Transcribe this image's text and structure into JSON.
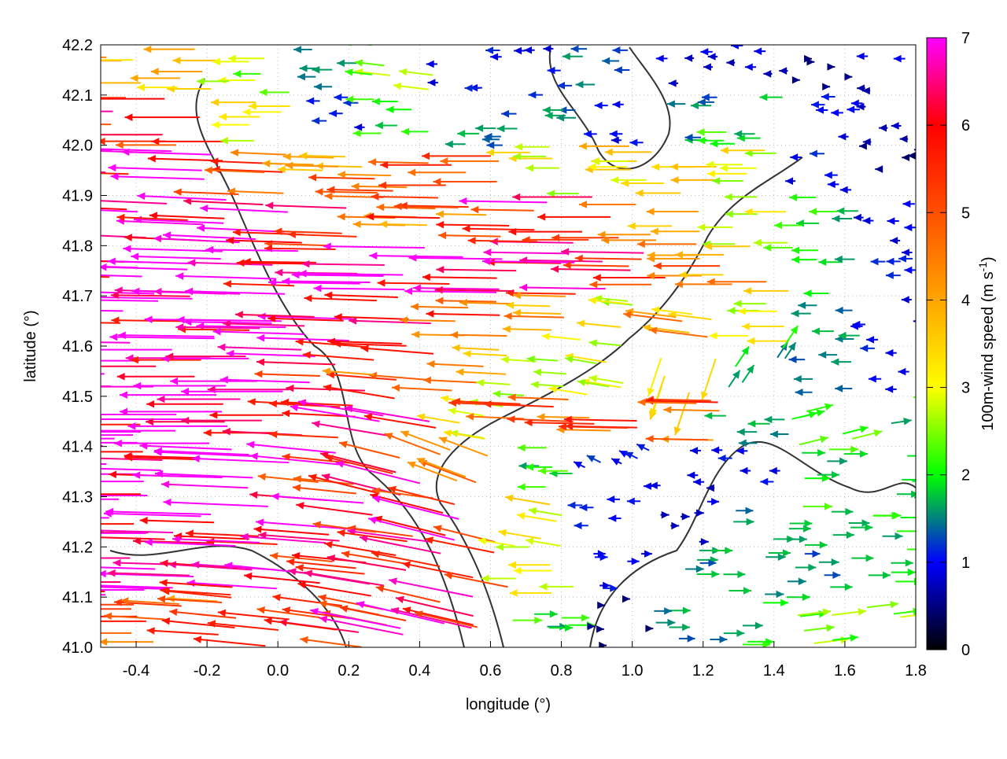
{
  "chart_data": {
    "type": "vector-field",
    "xlabel": "longitude (°)",
    "ylabel": "latitude (°)",
    "colorbar_label": "100m-wind speed (m s-1)",
    "colorbar_label_parts": {
      "main": "100m-wind speed (m s",
      "sup": "-1",
      "end": ")"
    },
    "xlim": [
      -0.5,
      1.8
    ],
    "ylim": [
      41.0,
      42.2
    ],
    "xticks": [
      "-0.4",
      "-0.2",
      "0.0",
      "0.2",
      "0.4",
      "0.6",
      "0.8",
      "1.0",
      "1.2",
      "1.4",
      "1.6",
      "1.8"
    ],
    "yticks": [
      "41.0",
      "41.1",
      "41.2",
      "41.3",
      "41.4",
      "41.5",
      "41.6",
      "41.7",
      "41.8",
      "41.9",
      "42.0",
      "42.1",
      "42.2"
    ],
    "colorbar_range": [
      0,
      7
    ],
    "colorbar_ticks": [
      "0",
      "1",
      "2",
      "3",
      "4",
      "5",
      "6",
      "7"
    ],
    "palette": [
      {
        "v": 0,
        "c": "#000000"
      },
      {
        "v": 1,
        "c": "#0000ff"
      },
      {
        "v": 1.5,
        "c": "#008080"
      },
      {
        "v": 2,
        "c": "#00ff00"
      },
      {
        "v": 3,
        "c": "#ffff00"
      },
      {
        "v": 4,
        "c": "#ffa500"
      },
      {
        "v": 5,
        "c": "#ff5000"
      },
      {
        "v": 6,
        "c": "#ff0000"
      },
      {
        "v": 7,
        "c": "#ff00ff"
      }
    ],
    "grid": true,
    "contour_color": "#333333",
    "vector_lon": [
      -0.45,
      -0.25,
      -0.05,
      0.15,
      0.35,
      0.55,
      0.75,
      0.95,
      1.15,
      1.35,
      1.55,
      1.75
    ],
    "vector_lat": [
      42.15,
      42.05,
      41.95,
      41.85,
      41.75,
      41.65,
      41.55,
      41.45,
      41.35,
      41.25,
      41.15,
      41.05
    ],
    "vectors_uv": [
      [
        [
          -4,
          0
        ],
        [
          -3.5,
          0
        ],
        [
          -2.5,
          0
        ],
        [
          -1.5,
          0
        ],
        [
          -2.5,
          0.3
        ],
        [
          -1,
          0
        ],
        [
          -1,
          0
        ],
        [
          -1.5,
          0
        ],
        [
          -0.8,
          0
        ],
        [
          -0.8,
          0
        ],
        [
          0.5,
          0
        ],
        [
          -0.8,
          0
        ]
      ],
      [
        [
          -6,
          0
        ],
        [
          -6,
          0
        ],
        [
          -3,
          0
        ],
        [
          -1,
          0
        ],
        [
          -2,
          0
        ],
        [
          -1.5,
          0
        ],
        [
          -1.5,
          0
        ],
        [
          -1,
          0
        ],
        [
          -1.5,
          0
        ],
        [
          -2,
          0
        ],
        [
          -1,
          0
        ],
        [
          -0.8,
          0
        ]
      ],
      [
        [
          -7,
          0.2
        ],
        [
          -6.5,
          0.2
        ],
        [
          -5,
          0.2
        ],
        [
          -4,
          0.1
        ],
        [
          -5,
          0.1
        ],
        [
          -5.5,
          0
        ],
        [
          -3,
          0
        ],
        [
          -3.5,
          0
        ],
        [
          -3.5,
          0
        ],
        [
          -3,
          0
        ],
        [
          -1,
          0
        ],
        [
          -0.5,
          0
        ]
      ],
      [
        [
          -7,
          0.3
        ],
        [
          -7,
          0.3
        ],
        [
          -6.5,
          0.3
        ],
        [
          -6,
          0.2
        ],
        [
          -4,
          0.1
        ],
        [
          -5,
          0.1
        ],
        [
          -6,
          0.1
        ],
        [
          -5.5,
          0
        ],
        [
          -4,
          0
        ],
        [
          -3,
          0
        ],
        [
          -2,
          0
        ],
        [
          -1,
          0
        ]
      ],
      [
        [
          -7,
          0.2
        ],
        [
          -7,
          0.2
        ],
        [
          -7,
          0.2
        ],
        [
          -7,
          0.1
        ],
        [
          -7,
          0.1
        ],
        [
          -7,
          0.1
        ],
        [
          -6.5,
          0.1
        ],
        [
          -6,
          0.1
        ],
        [
          -5,
          0
        ],
        [
          -4,
          0
        ],
        [
          -2,
          0
        ],
        [
          -1,
          0
        ]
      ],
      [
        [
          -7,
          0.1
        ],
        [
          -7,
          0.1
        ],
        [
          -7,
          0.1
        ],
        [
          -6.5,
          0.2
        ],
        [
          -6,
          0.2
        ],
        [
          -5,
          0.1
        ],
        [
          -4,
          0.1
        ],
        [
          -3,
          0.3
        ],
        [
          -4,
          0.5
        ],
        [
          -3,
          0
        ],
        [
          -1.5,
          0
        ],
        [
          -1,
          0
        ]
      ],
      [
        [
          -7,
          0
        ],
        [
          -7,
          0
        ],
        [
          -7,
          0
        ],
        [
          -6,
          0.2
        ],
        [
          -5,
          0.4
        ],
        [
          -4,
          0.2
        ],
        [
          -3,
          0.2
        ],
        [
          -3,
          0.5
        ],
        [
          -1,
          -3
        ],
        [
          1,
          1.5
        ],
        [
          -1.5,
          0
        ],
        [
          -1,
          0
        ]
      ],
      [
        [
          -7,
          0
        ],
        [
          -7,
          0
        ],
        [
          -7,
          0
        ],
        [
          -6,
          0.3
        ],
        [
          -6,
          1
        ],
        [
          -3,
          0.5
        ],
        [
          -5,
          0.2
        ],
        [
          -5,
          0.1
        ],
        [
          -5,
          0.1
        ],
        [
          -1.5,
          0
        ],
        [
          2,
          0.5
        ],
        [
          2,
          0.3
        ]
      ],
      [
        [
          -7,
          0
        ],
        [
          -7,
          0.2
        ],
        [
          -7,
          0.3
        ],
        [
          -6,
          0.6
        ],
        [
          -6,
          1.5
        ],
        [
          -4,
          1.5
        ],
        [
          -2,
          0
        ],
        [
          -1,
          0.5
        ],
        [
          -0.8,
          0
        ],
        [
          -1,
          0
        ],
        [
          2,
          0
        ],
        [
          2,
          0
        ]
      ],
      [
        [
          -7,
          0
        ],
        [
          -7,
          0.2
        ],
        [
          -7,
          0.3
        ],
        [
          -6.5,
          0.5
        ],
        [
          -6,
          0.8
        ],
        [
          -6,
          1.5
        ],
        [
          -3,
          0.5
        ],
        [
          -1,
          0
        ],
        [
          0.8,
          0
        ],
        [
          1.5,
          0
        ],
        [
          2,
          0
        ],
        [
          2,
          0
        ]
      ],
      [
        [
          -7,
          0
        ],
        [
          -6.5,
          0.2
        ],
        [
          -6,
          0.4
        ],
        [
          -6,
          0.6
        ],
        [
          -6,
          1
        ],
        [
          -6,
          1.2
        ],
        [
          -3,
          0
        ],
        [
          1,
          0
        ],
        [
          1.5,
          0
        ],
        [
          1.5,
          0
        ],
        [
          1.5,
          0
        ],
        [
          2,
          0
        ]
      ],
      [
        [
          -5,
          0
        ],
        [
          -5,
          0.3
        ],
        [
          -5,
          0.5
        ],
        [
          -6,
          0.8
        ],
        [
          -6,
          1.2
        ],
        [
          -6,
          1.4
        ],
        [
          2,
          0
        ],
        [
          0.5,
          0
        ],
        [
          1.5,
          0
        ],
        [
          2,
          0
        ],
        [
          2.5,
          0.3
        ],
        [
          2.5,
          0.3
        ]
      ]
    ]
  }
}
